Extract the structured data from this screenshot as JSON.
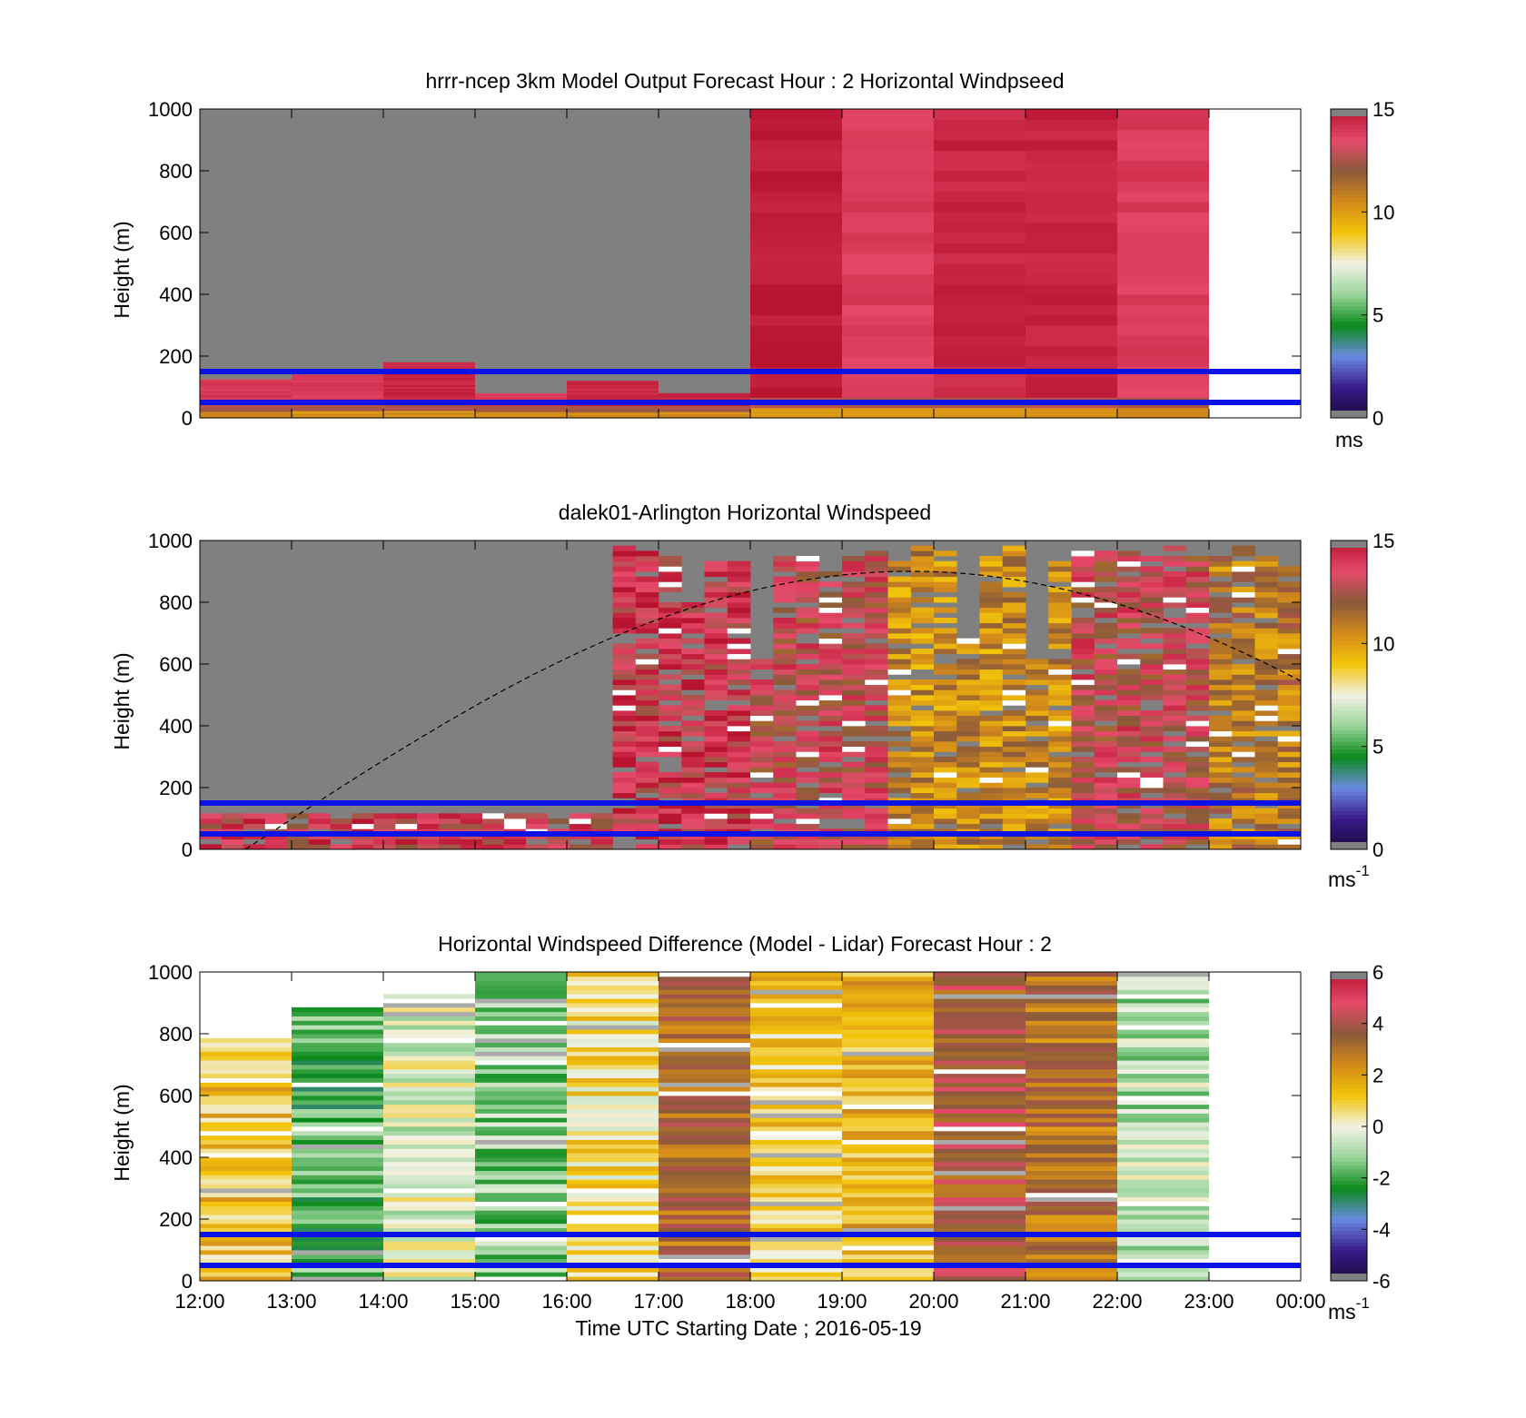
{
  "panels": [
    {
      "title": "hrrr-ncep 3km Model Output   Forecast Hour : 2 Horizontal Windpseed",
      "ylabel": "Height (m)",
      "colorbar_unit": "ms",
      "colorbar_unit_sup": ""
    },
    {
      "title": "dalek01-Arlington  Horizontal Windspeed",
      "ylabel": "Height (m)",
      "colorbar_unit": "ms",
      "colorbar_unit_sup": "-1"
    },
    {
      "title": "Horizontal Windspeed Difference (Model - Lidar) Forecast Hour : 2",
      "ylabel": "Height (m)",
      "colorbar_unit": "ms",
      "colorbar_unit_sup": "-1"
    }
  ],
  "xlabel": "Time UTC  Starting Date ; 2016-05-19",
  "x_ticks": [
    "12:00",
    "13:00",
    "14:00",
    "15:00",
    "16:00",
    "17:00",
    "18:00",
    "19:00",
    "20:00",
    "21:00",
    "22:00",
    "23:00",
    "00:00"
  ],
  "y_ticks": [
    "0",
    "200",
    "400",
    "600",
    "800",
    "1000"
  ],
  "colorbar_ticks": [
    [
      "0",
      "5",
      "10",
      "15"
    ],
    [
      "0",
      "5",
      "10",
      "15"
    ],
    [
      "-6",
      "-4",
      "-2",
      "0",
      "2",
      "4",
      "6"
    ]
  ],
  "colors": {
    "missing": "#808080",
    "reference_lines": "#0a12e6",
    "speed_scale": [
      "#808080",
      "#1a0a3c",
      "#3a1a8c",
      "#6a8ae0",
      "#0a8a1a",
      "#9ad49a",
      "#f2f2e6",
      "#f2c40a",
      "#d48a1a",
      "#8a5a3a",
      "#e64a6a",
      "#b81430"
    ],
    "diff_scale": [
      "#808080",
      "#1a0a3c",
      "#3a1a8c",
      "#6a8ae0",
      "#0a8a1a",
      "#9ad49a",
      "#f2f2e6",
      "#f2c40a",
      "#d48a1a",
      "#8a5a3a",
      "#e64a6a",
      "#b81430"
    ]
  },
  "chart_data": [
    {
      "type": "heatmap",
      "title": "hrrr-ncep 3km Model Output   Forecast Hour : 2 Horizontal Windpseed",
      "xlabel": "",
      "ylabel": "Height (m)",
      "x_range": [
        "12:00",
        "00:00"
      ],
      "ylim": [
        0,
        1000
      ],
      "color_range": [
        0,
        15
      ],
      "reference_heights_m": [
        150,
        50
      ],
      "columns": [
        {
          "start": "12:00",
          "end": "13:00",
          "top_m": 125,
          "speed_ms": 14.0,
          "above": "missing"
        },
        {
          "start": "13:00",
          "end": "14:00",
          "top_m": 140,
          "speed_ms": 14.0,
          "above": "missing"
        },
        {
          "start": "14:00",
          "end": "15:00",
          "top_m": 180,
          "speed_ms": 14.5,
          "above": "missing"
        },
        {
          "start": "15:00",
          "end": "16:00",
          "top_m": 80,
          "speed_ms": 14.0,
          "above": "missing"
        },
        {
          "start": "16:00",
          "end": "17:00",
          "top_m": 120,
          "speed_ms": 14.5,
          "above": "missing"
        },
        {
          "start": "17:00",
          "end": "18:00",
          "top_m": 80,
          "speed_ms": 14.5,
          "above": "missing"
        },
        {
          "start": "18:00",
          "end": "19:00",
          "top_m": 1000,
          "speed_ms": 14.8
        },
        {
          "start": "19:00",
          "end": "20:00",
          "top_m": 1000,
          "speed_ms": 13.8
        },
        {
          "start": "20:00",
          "end": "21:00",
          "top_m": 1000,
          "speed_ms": 14.5
        },
        {
          "start": "21:00",
          "end": "22:00",
          "top_m": 1000,
          "speed_ms": 14.6
        },
        {
          "start": "22:00",
          "end": "23:00",
          "top_m": 1000,
          "speed_ms": 13.9
        }
      ]
    },
    {
      "type": "heatmap",
      "title": "dalek01-Arlington  Horizontal Windspeed",
      "xlabel": "",
      "ylabel": "Height (m)",
      "x_range": [
        "12:00",
        "00:00"
      ],
      "ylim": [
        0,
        1000
      ],
      "color_range": [
        0,
        15
      ],
      "reference_heights_m": [
        150,
        50
      ],
      "dashed_curve_peak_m": 900,
      "dashed_curve_peak_time": "19:45",
      "column_groups": [
        {
          "start": "12:00",
          "end": "16:30",
          "valid_top_m": 130,
          "mean_speed_ms": 13.5
        },
        {
          "start": "16:30",
          "end": "18:00",
          "valid_top_m": 1000,
          "mean_speed_ms": 13.8
        },
        {
          "start": "18:00",
          "end": "19:30",
          "valid_top_m": 1000,
          "mean_speed_ms": 13.0
        },
        {
          "start": "19:30",
          "end": "21:30",
          "valid_top_m": 1000,
          "mean_speed_ms": 10.5
        },
        {
          "start": "21:30",
          "end": "23:00",
          "valid_top_m": 1000,
          "mean_speed_ms": 13.0
        },
        {
          "start": "23:00",
          "end": "00:00",
          "valid_top_m": 1000,
          "mean_speed_ms": 11.0
        }
      ]
    },
    {
      "type": "heatmap",
      "title": "Horizontal Windspeed Difference (Model - Lidar) Forecast Hour : 2",
      "xlabel": "Time UTC  Starting Date ; 2016-05-19",
      "ylabel": "Height (m)",
      "x_range": [
        "12:00",
        "00:00"
      ],
      "ylim": [
        0,
        1000
      ],
      "color_range": [
        -6,
        6
      ],
      "reference_heights_m": [
        150,
        50
      ],
      "columns": [
        {
          "start": "12:00",
          "end": "13:00",
          "top_m": 790,
          "mean_diff_ms": 1.2
        },
        {
          "start": "13:00",
          "end": "14:00",
          "top_m": 895,
          "mean_diff_ms": -1.8
        },
        {
          "start": "14:00",
          "end": "15:00",
          "top_m": 940,
          "mean_diff_ms": -0.3
        },
        {
          "start": "15:00",
          "end": "16:00",
          "top_m": 1000,
          "mean_diff_ms": -1.2
        },
        {
          "start": "16:00",
          "end": "17:00",
          "top_m": 1000,
          "mean_diff_ms": 0.6
        },
        {
          "start": "17:00",
          "end": "18:00",
          "top_m": 1000,
          "mean_diff_ms": 3.2
        },
        {
          "start": "18:00",
          "end": "19:00",
          "top_m": 1000,
          "mean_diff_ms": 1.0
        },
        {
          "start": "19:00",
          "end": "20:00",
          "top_m": 1000,
          "mean_diff_ms": 1.5
        },
        {
          "start": "20:00",
          "end": "21:00",
          "top_m": 1000,
          "mean_diff_ms": 3.8
        },
        {
          "start": "21:00",
          "end": "22:00",
          "top_m": 1000,
          "mean_diff_ms": 3.0
        },
        {
          "start": "22:00",
          "end": "23:00",
          "top_m": 1000,
          "mean_diff_ms": -0.8
        }
      ]
    }
  ]
}
